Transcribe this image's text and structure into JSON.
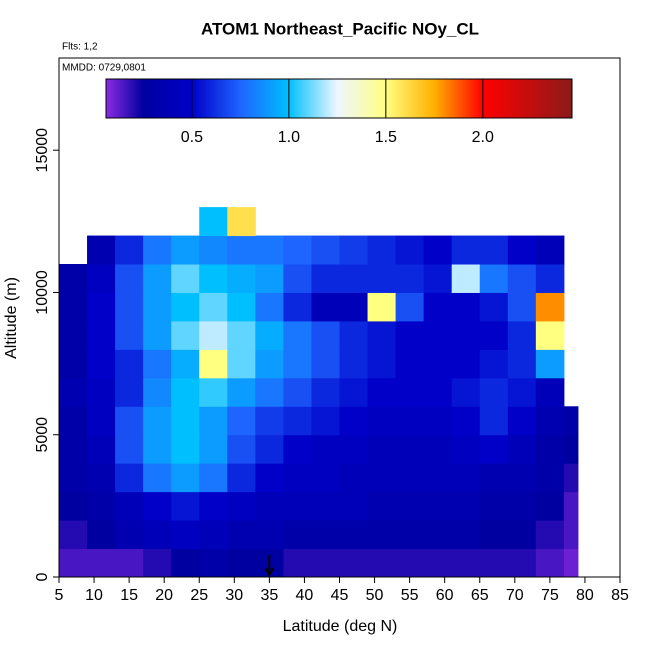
{
  "chart_data": {
    "type": "heatmap",
    "title": "ATOM1 Northeast_Pacific NOy_CL",
    "subtitle": "Flts: 1,2",
    "annotation": "MMDD: 0729,0801",
    "xlabel": "Latitude (deg N)",
    "ylabel": "Altitude (m)",
    "xlim": [
      5,
      85
    ],
    "xticks": [
      5,
      10,
      15,
      20,
      25,
      30,
      35,
      40,
      45,
      50,
      55,
      60,
      65,
      70,
      75,
      80,
      85
    ],
    "ylim": [
      0,
      18240
    ],
    "yticks": [
      0,
      5000,
      10000,
      15000
    ],
    "xbins": [
      5,
      9,
      13,
      17,
      21,
      25,
      29,
      33,
      37,
      41,
      45,
      49,
      53,
      57,
      61,
      65,
      69,
      73,
      77,
      79
    ],
    "ybins": [
      0,
      1000,
      2000,
      3000,
      4000,
      5000,
      6000,
      7000,
      8000,
      9000,
      10000,
      11000,
      12000,
      13000
    ],
    "z": [
      [
        0.15,
        0.15,
        0.15,
        0.2,
        0.25,
        0.3,
        0.25,
        0.25,
        0.2,
        0.2,
        0.2,
        0.2,
        0.2,
        0.2,
        0.2,
        0.2,
        0.2,
        0.15,
        0.1
      ],
      [
        0.2,
        0.25,
        0.35,
        0.4,
        0.45,
        0.4,
        0.35,
        0.35,
        0.3,
        0.3,
        0.3,
        0.3,
        0.3,
        0.3,
        0.3,
        0.25,
        0.25,
        0.2,
        0.15
      ],
      [
        0.25,
        0.3,
        0.4,
        0.5,
        0.55,
        0.5,
        0.45,
        0.4,
        0.4,
        0.4,
        0.4,
        0.35,
        0.35,
        0.35,
        0.35,
        0.3,
        0.3,
        0.25,
        0.15
      ],
      [
        0.3,
        0.35,
        0.6,
        0.8,
        0.9,
        0.8,
        0.6,
        0.5,
        0.45,
        0.45,
        0.4,
        0.4,
        0.4,
        0.4,
        0.4,
        0.35,
        0.35,
        0.3,
        0.2
      ],
      [
        0.3,
        0.4,
        0.7,
        0.9,
        1.0,
        0.9,
        0.7,
        0.6,
        0.5,
        0.45,
        0.45,
        0.4,
        0.4,
        0.4,
        0.45,
        0.5,
        0.4,
        0.3,
        0.25
      ],
      [
        0.3,
        0.45,
        0.7,
        0.9,
        1.0,
        0.9,
        0.75,
        0.65,
        0.6,
        0.55,
        0.5,
        0.45,
        0.45,
        0.45,
        0.5,
        0.6,
        0.5,
        0.35,
        0.3
      ],
      [
        0.35,
        0.45,
        0.6,
        0.85,
        1.0,
        1.05,
        0.9,
        0.8,
        0.7,
        0.6,
        0.55,
        0.5,
        0.5,
        0.5,
        0.55,
        0.6,
        0.55,
        0.4,
        null
      ],
      [
        0.3,
        0.5,
        0.6,
        0.8,
        0.95,
        1.5,
        1.1,
        0.9,
        0.8,
        0.7,
        0.6,
        0.55,
        0.5,
        0.5,
        0.5,
        0.55,
        0.6,
        0.9,
        null
      ],
      [
        0.3,
        0.5,
        0.7,
        0.9,
        1.1,
        1.2,
        1.1,
        0.95,
        0.8,
        0.7,
        0.6,
        0.55,
        0.5,
        0.5,
        0.5,
        0.5,
        0.6,
        1.5,
        null
      ],
      [
        0.3,
        0.5,
        0.7,
        0.9,
        1.0,
        1.1,
        1.0,
        0.8,
        0.6,
        0.4,
        0.4,
        1.5,
        0.7,
        0.5,
        0.5,
        0.55,
        0.7,
        1.8,
        null
      ],
      [
        0.3,
        0.45,
        0.7,
        0.9,
        1.1,
        1.0,
        0.95,
        0.9,
        0.7,
        0.6,
        0.6,
        0.6,
        0.6,
        0.55,
        1.2,
        0.8,
        0.7,
        0.6,
        null
      ],
      [
        null,
        0.35,
        0.6,
        0.8,
        0.9,
        0.85,
        0.8,
        0.8,
        0.75,
        0.7,
        0.65,
        0.6,
        0.55,
        0.5,
        0.6,
        0.6,
        0.5,
        0.4,
        null
      ],
      [
        null,
        null,
        null,
        null,
        null,
        1.0,
        1.6,
        null,
        null,
        null,
        null,
        null,
        null,
        null,
        null,
        null,
        null,
        null,
        null
      ]
    ],
    "clim": [
      0.057,
      2.46
    ],
    "cticks": [
      0.5,
      {
        "value": 1.0,
        "label": "1.0"
      },
      1.5,
      {
        "value": 2.0,
        "label": "2.0"
      }
    ],
    "colorscale": [
      [
        0.057,
        "#8a2be2"
      ],
      [
        0.25,
        "#0000a0"
      ],
      [
        0.5,
        "#0000c8"
      ],
      [
        0.75,
        "#1e64ff"
      ],
      [
        1.0,
        "#00bfff"
      ],
      [
        1.25,
        "#eef6ff"
      ],
      [
        1.5,
        "#ffff80"
      ],
      [
        1.75,
        "#ffb000"
      ],
      [
        2.0,
        "#ff0000"
      ],
      [
        2.46,
        "#8b1a1a"
      ]
    ],
    "arrow_x": 35
  }
}
